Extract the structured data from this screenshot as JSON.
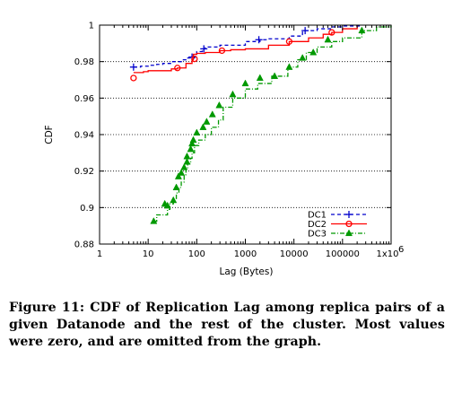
{
  "chart_data": {
    "type": "line",
    "xlabel": "Lag (Bytes)",
    "ylabel": "CDF",
    "x_scale": "log",
    "xlim": [
      1,
      1000000
    ],
    "ylim": [
      0.88,
      1.0
    ],
    "x_tick_labels": [
      "1",
      "10",
      "100",
      "1000",
      "10000",
      "100000",
      "1x10"
    ],
    "x_tick_exponent": "6",
    "y_tick_labels": [
      "0.88",
      "0.9",
      "0.92",
      "0.94",
      "0.96",
      "0.98",
      "1"
    ],
    "y_ticks": [
      0.88,
      0.9,
      0.92,
      0.94,
      0.96,
      0.98,
      1.0
    ],
    "grid": "horizontal dotted",
    "legend_position": "bottom-right",
    "series": [
      {
        "name": "DC1",
        "color": "#0000cc",
        "line_style": "dashed",
        "marker": "plus",
        "x": [
          5,
          7,
          10,
          15,
          20,
          30,
          50,
          60,
          75,
          90,
          100,
          130,
          150,
          300,
          1000,
          2000,
          3000,
          8000,
          15000,
          30000,
          60000,
          100000,
          250000
        ],
        "y": [
          0.977,
          0.9775,
          0.978,
          0.9785,
          0.979,
          0.98,
          0.981,
          0.982,
          0.982,
          0.983,
          0.9855,
          0.987,
          0.988,
          0.989,
          0.991,
          0.992,
          0.9925,
          0.994,
          0.997,
          0.998,
          0.999,
          0.9995,
          1.0
        ],
        "markers_x": [
          5,
          80,
          140,
          1900,
          17000
        ],
        "markers_y": [
          0.977,
          0.9825,
          0.987,
          0.992,
          0.997
        ]
      },
      {
        "name": "DC2",
        "color": "#ff0000",
        "line_style": "solid",
        "marker": "circle",
        "x": [
          5,
          8,
          10,
          15,
          30,
          40,
          60,
          80,
          85,
          100,
          150,
          300,
          500,
          1000,
          3000,
          8000,
          20000,
          40000,
          60000,
          100000,
          200000
        ],
        "y": [
          0.974,
          0.9745,
          0.975,
          0.975,
          0.976,
          0.9765,
          0.979,
          0.981,
          0.984,
          0.9845,
          0.985,
          0.986,
          0.9865,
          0.987,
          0.989,
          0.991,
          0.993,
          0.995,
          0.996,
          0.998,
          1.0
        ],
        "markers_x": [
          5,
          40,
          90,
          330,
          8000,
          60000
        ],
        "markers_y": [
          0.971,
          0.9765,
          0.9815,
          0.986,
          0.991,
          0.996
        ]
      },
      {
        "name": "DC3",
        "color": "#009900",
        "line_style": "dash-dot",
        "marker": "triangle",
        "x": [
          13,
          15,
          20,
          25,
          28,
          33,
          38,
          43,
          48,
          55,
          60,
          65,
          75,
          80,
          90,
          110,
          150,
          200,
          280,
          350,
          550,
          1000,
          1800,
          3500,
          7500,
          12000,
          18000,
          30000,
          60000,
          100000,
          250000,
          500000,
          1000000
        ],
        "y": [
          0.8925,
          0.896,
          0.896,
          0.899,
          0.902,
          0.905,
          0.908,
          0.911,
          0.914,
          0.918,
          0.921,
          0.924,
          0.927,
          0.93,
          0.934,
          0.937,
          0.94,
          0.944,
          0.948,
          0.955,
          0.96,
          0.965,
          0.968,
          0.972,
          0.977,
          0.981,
          0.985,
          0.988,
          0.991,
          0.993,
          0.997,
          0.999,
          1.0
        ],
        "markers_x": [
          13,
          22,
          25,
          33,
          38,
          42,
          48,
          55,
          63,
          63,
          75,
          80,
          85,
          100,
          135,
          160,
          210,
          290,
          550,
          1000,
          2000,
          4000,
          8000,
          15000,
          25000,
          50000,
          250000
        ],
        "markers_y": [
          0.8925,
          0.902,
          0.901,
          0.904,
          0.911,
          0.917,
          0.919,
          0.922,
          0.925,
          0.928,
          0.932,
          0.935,
          0.937,
          0.941,
          0.944,
          0.947,
          0.951,
          0.956,
          0.962,
          0.968,
          0.971,
          0.972,
          0.977,
          0.982,
          0.985,
          0.992,
          0.997
        ]
      }
    ]
  },
  "caption": "Figure 11: CDF of Replication Lag among replica pairs of a given Datanode and the rest of the cluster. Most values were zero, and are omitted from the graph."
}
